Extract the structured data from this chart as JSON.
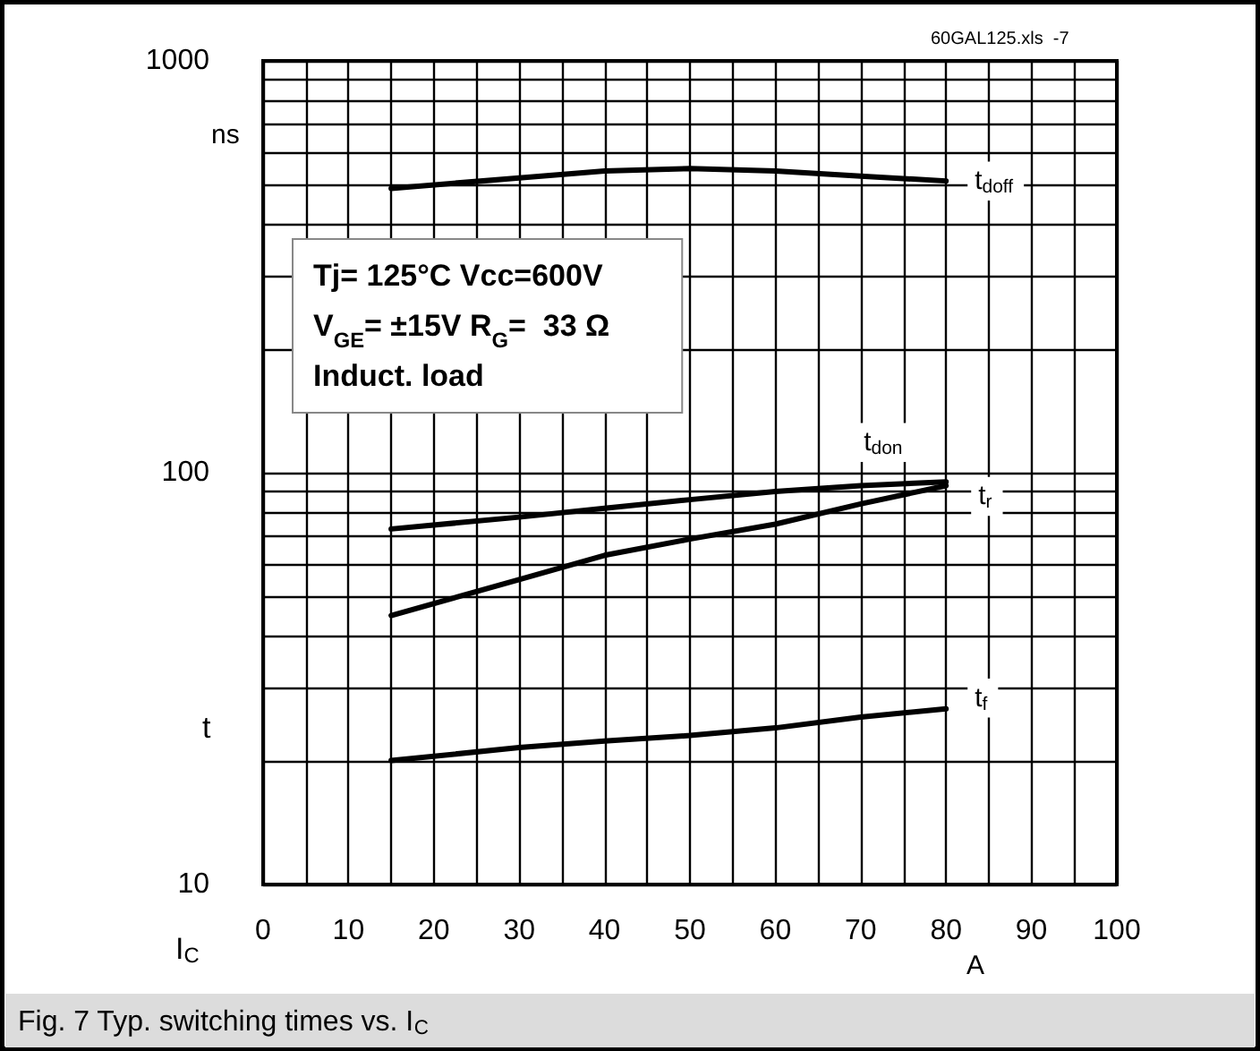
{
  "chart_data": {
    "type": "line",
    "xlabel": "I$_{C}$",
    "ylabel": "t",
    "log": "y",
    "grid": true,
    "legend": false,
    "marker": "none",
    "xlim": [
      0,
      100
    ],
    "ylim": [
      10,
      1000
    ],
    "xticks": [
      0,
      {
        "value": 5,
        "label": null
      },
      10,
      {
        "value": 15,
        "label": null
      },
      20,
      {
        "value": 25,
        "label": null
      },
      30,
      {
        "value": 35,
        "label": null
      },
      40,
      {
        "value": 45,
        "label": null
      },
      50,
      {
        "value": 55,
        "label": null
      },
      60,
      {
        "value": 65,
        "label": null
      },
      70,
      {
        "value": 75,
        "label": null
      },
      80,
      {
        "value": 85,
        "label": null
      },
      90,
      {
        "value": 95,
        "label": null
      },
      100
    ],
    "yticks": [
      10,
      {
        "value": 20,
        "label": null
      },
      {
        "value": 30,
        "label": null
      },
      {
        "value": 40,
        "label": null
      },
      {
        "value": 50,
        "label": null
      },
      {
        "value": 60,
        "label": null
      },
      {
        "value": 70,
        "label": null
      },
      {
        "value": 80,
        "label": null
      },
      {
        "value": 90,
        "label": null
      },
      100,
      {
        "value": 200,
        "label": null
      },
      {
        "value": 300,
        "label": null
      },
      {
        "value": 400,
        "label": null
      },
      {
        "value": 500,
        "label": null
      },
      {
        "value": 600,
        "label": null
      },
      {
        "value": 700,
        "label": null
      },
      {
        "value": 800,
        "label": null
      },
      {
        "value": 900,
        "label": null
      },
      1000
    ],
    "series": [
      {
        "name": "t$_{doff}$",
        "color": "#000000",
        "x": [
          15,
          30,
          40,
          50,
          60,
          70,
          80
        ],
        "values": [
          490,
          520,
          540,
          548,
          540,
          525,
          511
        ]
      },
      {
        "name": "t$_{don}$",
        "color": "#000000",
        "x": [
          15,
          30,
          40,
          50,
          60,
          70,
          80
        ],
        "values": [
          73,
          78,
          82,
          86,
          90,
          93,
          95
        ]
      },
      {
        "name": "t$_{r}$",
        "color": "#000000",
        "x": [
          15,
          30,
          40,
          50,
          60,
          70,
          80
        ],
        "values": [
          45,
          55,
          63,
          69,
          75,
          84,
          93
        ]
      },
      {
        "name": "t$_{f}$",
        "color": "#000000",
        "x": [
          15,
          30,
          40,
          50,
          60,
          70,
          80
        ],
        "values": [
          20,
          21.5,
          22.3,
          23,
          24,
          25.5,
          26.7
        ]
      }
    ],
    "annotations": [
      "ns",
      "A",
      "Tj= 125°C Vcc=600V",
      "V$_{GE}$= ±15V R$_{G}$=  33 Ω",
      "Induct. load",
      "60GAL125.xls  -7",
      "Fig. 7 Typ. switching times vs. I$_{C}$"
    ]
  }
}
